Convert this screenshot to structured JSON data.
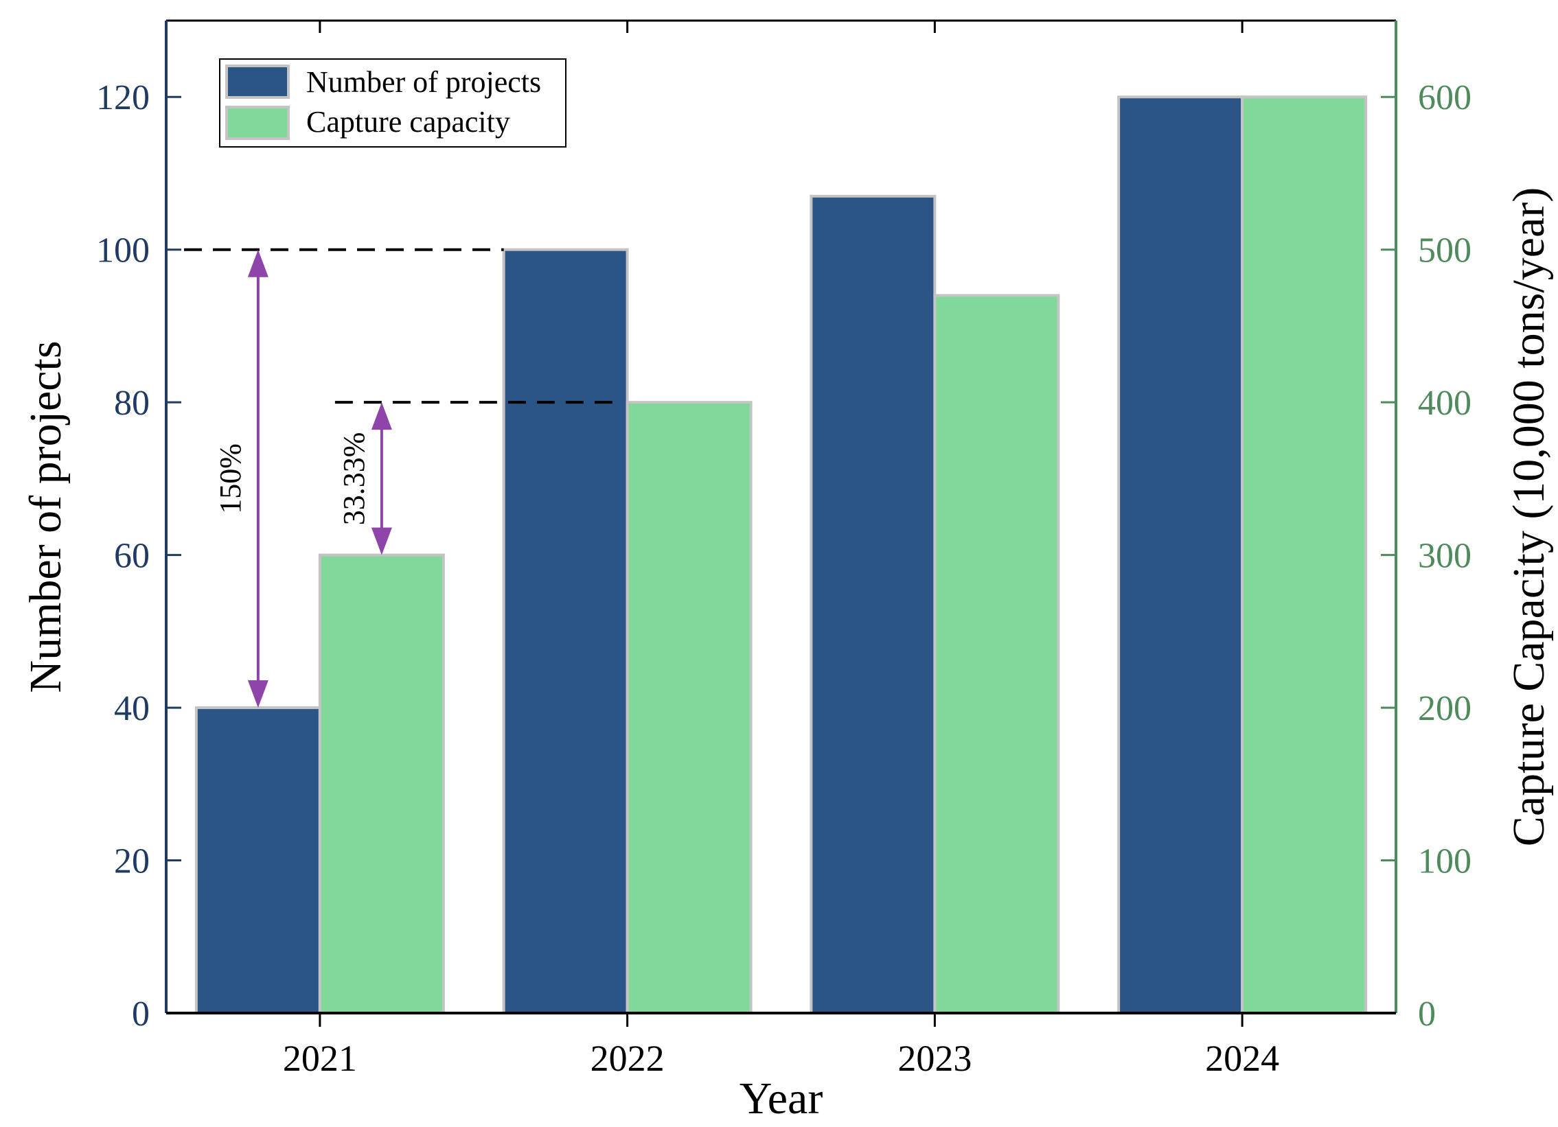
{
  "chart_data": {
    "type": "bar",
    "title": "",
    "xlabel": "Year",
    "ylabel": "Number of projects",
    "y2label": "Capture Capacity (10,000 tons/year)",
    "categories": [
      "2021",
      "2022",
      "2023",
      "2024"
    ],
    "ylim": [
      0,
      130
    ],
    "y2lim": [
      0,
      650
    ],
    "yticks": [
      0,
      20,
      40,
      60,
      80,
      100,
      120
    ],
    "y2ticks": [
      0,
      100,
      200,
      300,
      400,
      500,
      600
    ],
    "series": [
      {
        "name": "Number of projects",
        "axis": "left",
        "values": [
          40,
          100,
          107,
          120
        ]
      },
      {
        "name": "Capture capacity",
        "axis": "right",
        "values": [
          300,
          400,
          470,
          600
        ]
      }
    ],
    "legend": {
      "position": "top-left",
      "entries": [
        "Number of projects",
        "Capture capacity"
      ]
    },
    "annotations": [
      {
        "label": "150%",
        "series": "Number of projects",
        "from_category": "2021",
        "to_category": "2022",
        "from_value": 40,
        "to_value": 100
      },
      {
        "label": "33.33%",
        "series": "Capture capacity",
        "from_category": "2021",
        "to_category": "2022",
        "from_value": 300,
        "to_value": 400
      }
    ],
    "colors": {
      "projects": "#2c5587",
      "capacity": "#80d89a",
      "bar_border": "#c4c4c4",
      "left_axis": "#1f3b63",
      "right_axis": "#4e8a5c",
      "annotation": "#8e44a8",
      "guide": "#000000"
    }
  }
}
